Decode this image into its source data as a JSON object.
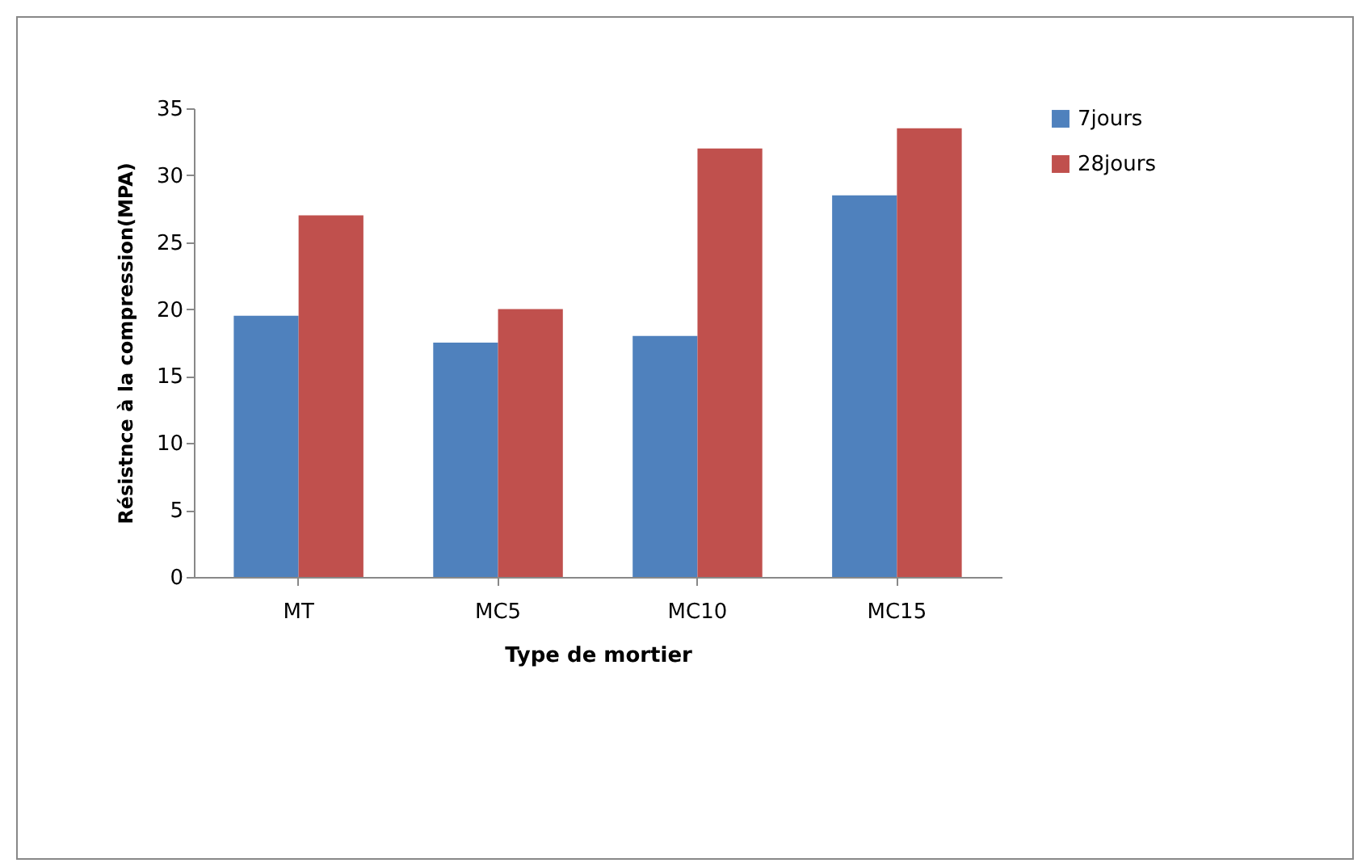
{
  "chart_data": {
    "type": "bar",
    "xlabel": "Type de mortier",
    "ylabel": "Résistnce à la compression(MPA)",
    "categories": [
      "MT",
      "MC5",
      "MC10",
      "MC15"
    ],
    "series": [
      {
        "name": "7jours",
        "color": "#4f81bd",
        "values": [
          19.5,
          17.5,
          18,
          28.5
        ]
      },
      {
        "name": "28jours",
        "color": "#c0504d",
        "values": [
          27,
          20,
          32,
          33.5
        ]
      }
    ],
    "ylim": [
      0,
      35
    ],
    "yticks": [
      0,
      5,
      10,
      15,
      20,
      25,
      30,
      35
    ],
    "legend": "right"
  }
}
